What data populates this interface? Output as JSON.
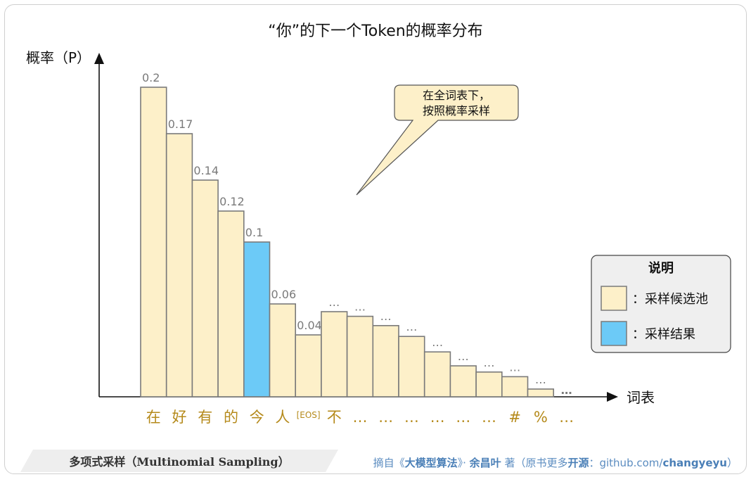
{
  "chart_data": {
    "type": "bar",
    "title": "“你”的下一个Token的概率分布",
    "ylabel": "概率（P）",
    "xlabel": "词表",
    "categories": [
      "在",
      "好",
      "有",
      "的",
      "今",
      "人",
      "[EOS]",
      "不",
      "…",
      "…",
      "…",
      "…",
      "…",
      "…",
      "#",
      "%",
      "…"
    ],
    "values": [
      0.2,
      0.17,
      0.14,
      0.12,
      0.1,
      0.06,
      0.04,
      0.055,
      0.052,
      0.046,
      0.039,
      0.029,
      0.02,
      0.016,
      0.013,
      0.005,
      0.0
    ],
    "value_labels": [
      "0.2",
      "0.17",
      "0.14",
      "0.12",
      "0.1",
      "0.06",
      "0.04",
      "…",
      "…",
      "…",
      "…",
      "…",
      "…",
      "…",
      "…",
      "…",
      "…"
    ],
    "highlight_index": 4,
    "colors": {
      "candidate": "#fdf0c9",
      "sampled": "#6ccaf7",
      "edge": "#7a7a7a"
    }
  },
  "callout": {
    "line1": "在全词表下，",
    "line2": "按照概率采样"
  },
  "legend": {
    "title": "说明",
    "items": [
      {
        "label": "：采样候选池",
        "color": "#fdf0c9"
      },
      {
        "label": "：采样结果",
        "color": "#6ccaf7"
      }
    ]
  },
  "footer": {
    "left": "多项式采样（Multinomial Sampling）",
    "right_prefix": "摘自《",
    "book": "大模型算法",
    "right_mid": "》· ",
    "author": "余昌叶",
    "right_mid2": " 著（原书更多",
    "open": "开源",
    "right_mid3": "：github.com/",
    "handle": "changyeyu",
    "right_suffix": "）"
  }
}
